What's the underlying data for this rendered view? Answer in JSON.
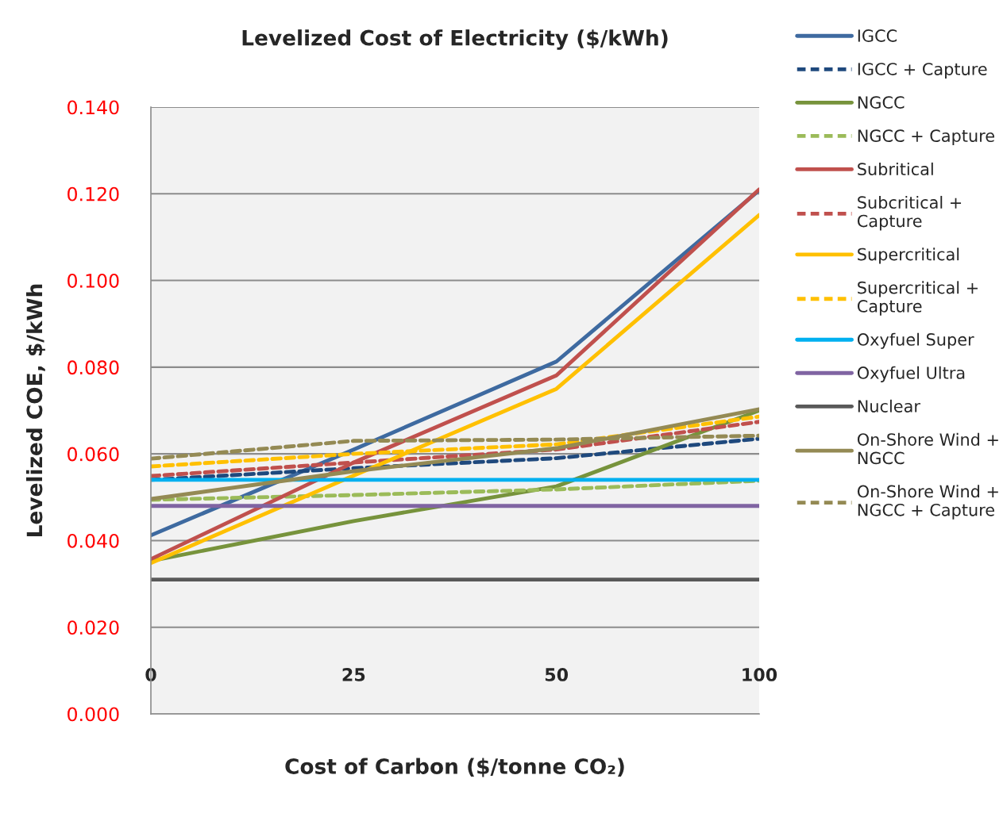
{
  "chart_data": {
    "type": "line",
    "title": "Levelized Cost of Electricity ($/kWh)",
    "xlabel": "Cost of Carbon ($/tonne CO₂)",
    "ylabel": "Levelized COE, $/kWh",
    "categories": [
      "0",
      "25",
      "50",
      "100"
    ],
    "ylim": [
      0,
      0.14
    ],
    "yticks": [
      {
        "value": 0,
        "label": "0.000"
      },
      {
        "value": 0.02,
        "label": "0.020"
      },
      {
        "value": 0.04,
        "label": "0.040"
      },
      {
        "value": 0.06,
        "label": "0.060"
      },
      {
        "value": 0.08,
        "label": "0.080"
      },
      {
        "value": 0.1,
        "label": "0.100"
      },
      {
        "value": 0.12,
        "label": "0.120"
      },
      {
        "value": 0.14,
        "label": "0.140"
      }
    ],
    "grid": "y",
    "legend": "right",
    "marker": "none",
    "series": [
      {
        "name": "IGCC",
        "color": "#3e6aa0",
        "line_style": "solid",
        "values": [
          0.0412,
          0.061,
          0.0813,
          0.1208
        ]
      },
      {
        "name": "IGCC + Capture",
        "color": "#1f497d",
        "line_style": "dashed",
        "values": [
          0.054,
          0.0567,
          0.059,
          0.0635
        ]
      },
      {
        "name": "NGCC",
        "color": "#77933c",
        "line_style": "solid",
        "values": [
          0.0353,
          0.0445,
          0.0525,
          0.07
        ]
      },
      {
        "name": "NGCC + Capture",
        "color": "#9bbb59",
        "line_style": "dashed",
        "values": [
          0.0494,
          0.0505,
          0.0518,
          0.0538
        ]
      },
      {
        "name": "Subritical",
        "color": "#c0504d",
        "line_style": "solid",
        "values": [
          0.0357,
          0.058,
          0.0781,
          0.121
        ]
      },
      {
        "name": "Subcritical +\nCapture",
        "color": "#c0504d",
        "line_style": "dashed",
        "values": [
          0.0549,
          0.058,
          0.061,
          0.0674
        ]
      },
      {
        "name": "Supercritical",
        "color": "#ffc000",
        "line_style": "solid",
        "values": [
          0.0348,
          0.055,
          0.075,
          0.1151
        ]
      },
      {
        "name": "Supercritical +\nCapture",
        "color": "#ffc000",
        "line_style": "dashed",
        "values": [
          0.0571,
          0.06,
          0.0622,
          0.0686
        ]
      },
      {
        "name": "Oxyfuel Super",
        "color": "#00b0f0",
        "line_style": "solid",
        "values": [
          0.054,
          0.054,
          0.054,
          0.054
        ]
      },
      {
        "name": "Oxyfuel Ultra",
        "color": "#8064a2",
        "line_style": "solid",
        "values": [
          0.048,
          0.048,
          0.048,
          0.048
        ]
      },
      {
        "name": "Nuclear",
        "color": "#595959",
        "line_style": "solid",
        "values": [
          0.031,
          0.031,
          0.031,
          0.031
        ]
      },
      {
        "name": "On-Shore Wind +\nNGCC",
        "color": "#948a54",
        "line_style": "solid",
        "values": [
          0.0496,
          0.056,
          0.0613,
          0.0703
        ]
      },
      {
        "name": "On-Shore Wind +\nNGCC + Capture",
        "color": "#948a54",
        "line_style": "dashed",
        "values": [
          0.0589,
          0.063,
          0.0633,
          0.0642
        ]
      }
    ]
  }
}
